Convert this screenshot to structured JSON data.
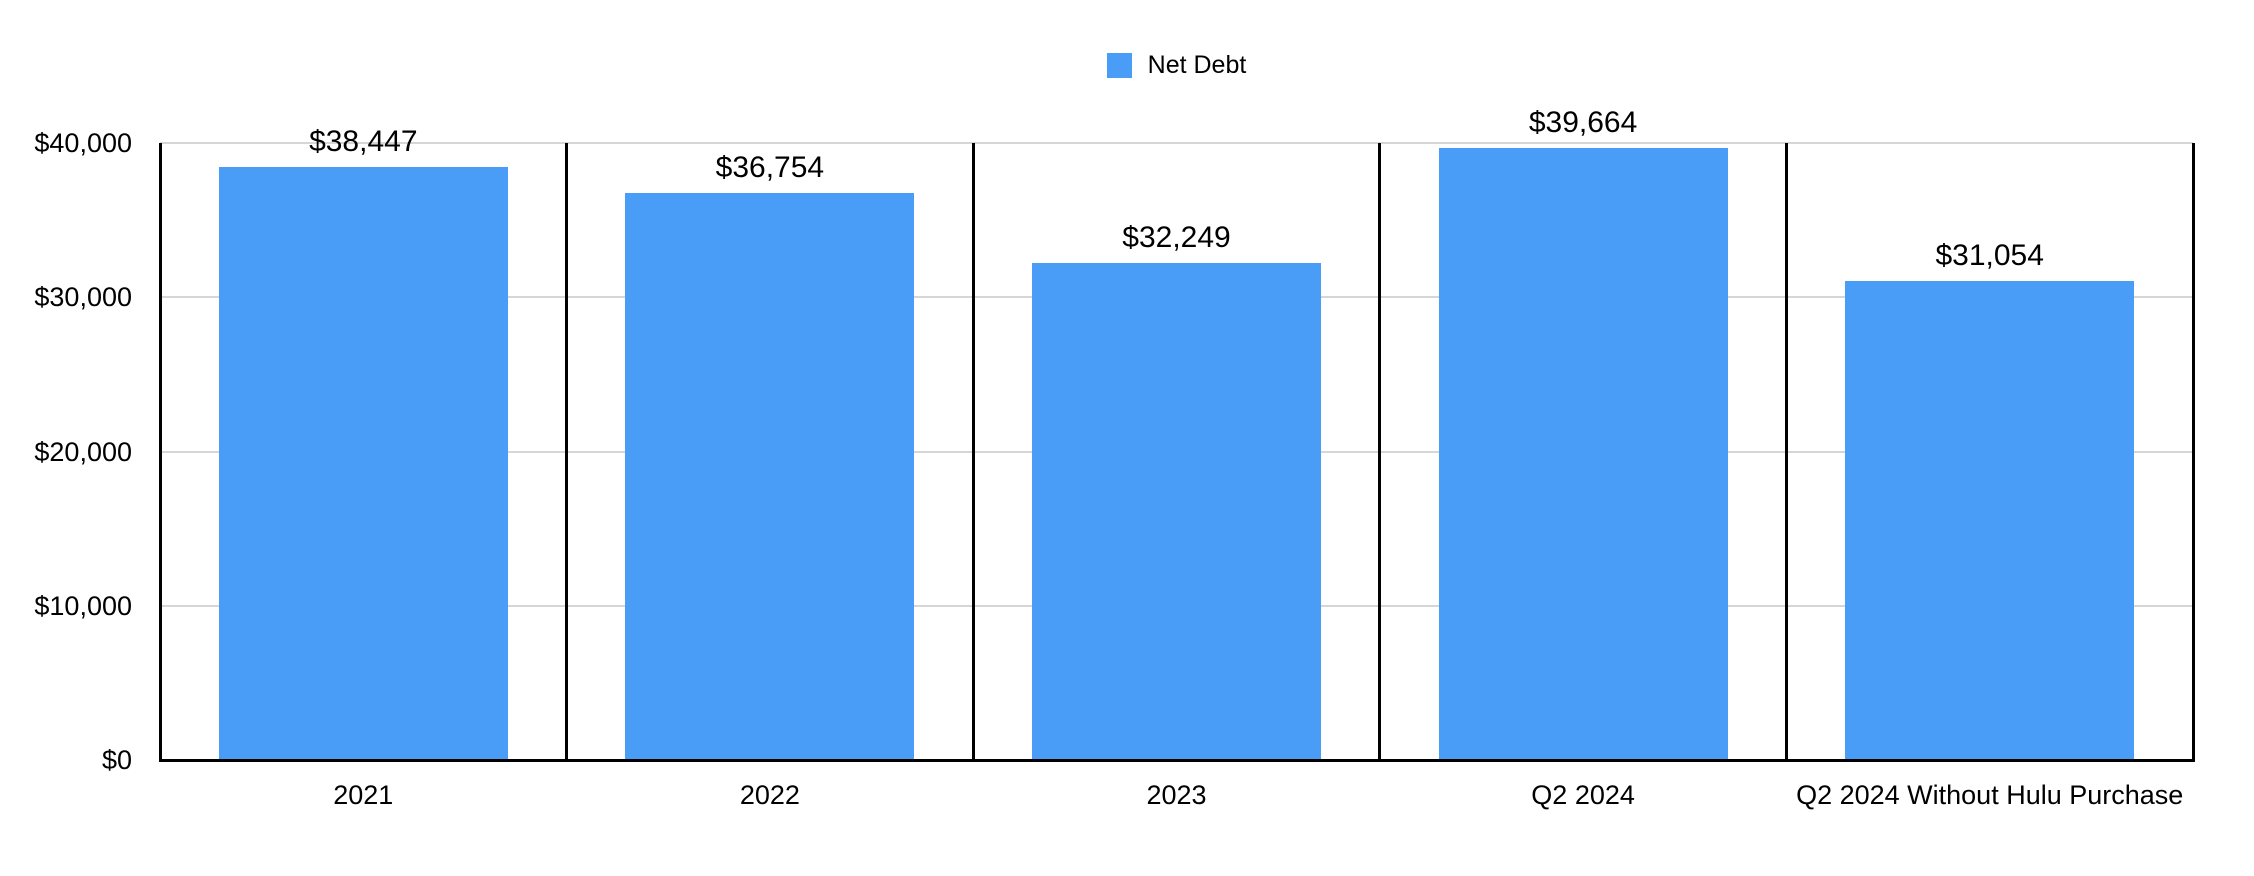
{
  "chart_data": {
    "type": "bar",
    "title": "",
    "legend": {
      "label": "Net Debt",
      "position": "top-center"
    },
    "categories": [
      "2021",
      "2022",
      "2023",
      "Q2 2024",
      "Q2 2024 Without Hulu Purchase"
    ],
    "series_name": "Net Debt",
    "values": [
      38447,
      36754,
      32249,
      39664,
      31054
    ],
    "value_labels": [
      "$38,447",
      "$36,754",
      "$32,249",
      "$39,664",
      "$31,054"
    ],
    "ylim": [
      0,
      40000
    ],
    "y_ticks": {
      "values": [
        0,
        10000,
        20000,
        30000,
        40000
      ],
      "labels": [
        "$0",
        "$10,000",
        "$20,000",
        "$30,000",
        "$40,000"
      ]
    },
    "grid": "horizontal",
    "panel_dividers": true,
    "colors": {
      "bar": "#4A9DF6",
      "gridline": "#D6D6D6",
      "axis": "#000000",
      "text": "#000000",
      "background": "#FFFFFF"
    }
  }
}
